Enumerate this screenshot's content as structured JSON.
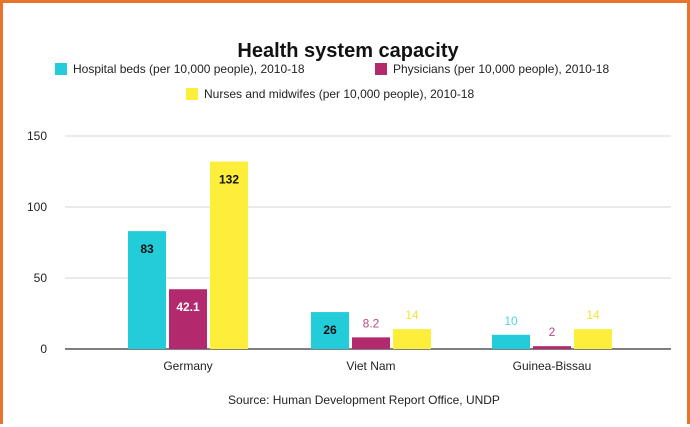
{
  "chart_data": {
    "type": "bar",
    "title": "Health system capacity",
    "source": "Source: Human Development Report Office, UNDP",
    "categories": [
      "Germany",
      "Viet Nam",
      "Guinea-Bissau"
    ],
    "yticks": [
      "0",
      "50",
      "100",
      "150"
    ],
    "ylim": [
      0,
      150
    ],
    "grid": true,
    "legend_position": "top",
    "series": [
      {
        "name": "Hospital beds (per 10,000 people), 2010-18",
        "color": "#22ccd8",
        "values": [
          83,
          26,
          10
        ],
        "labels": [
          "83",
          "26",
          "10"
        ]
      },
      {
        "name": "Physicians (per 10,000 people), 2010-18",
        "color": "#b3296e",
        "values": [
          42.1,
          8.2,
          2
        ],
        "labels": [
          "42.1",
          "8.2",
          "2"
        ]
      },
      {
        "name": "Nurses and midwifes (per 10,000 people), 2010-18",
        "color": "#fcee3a",
        "values": [
          132,
          14,
          14
        ],
        "labels": [
          "132",
          "14",
          "14"
        ]
      }
    ]
  }
}
